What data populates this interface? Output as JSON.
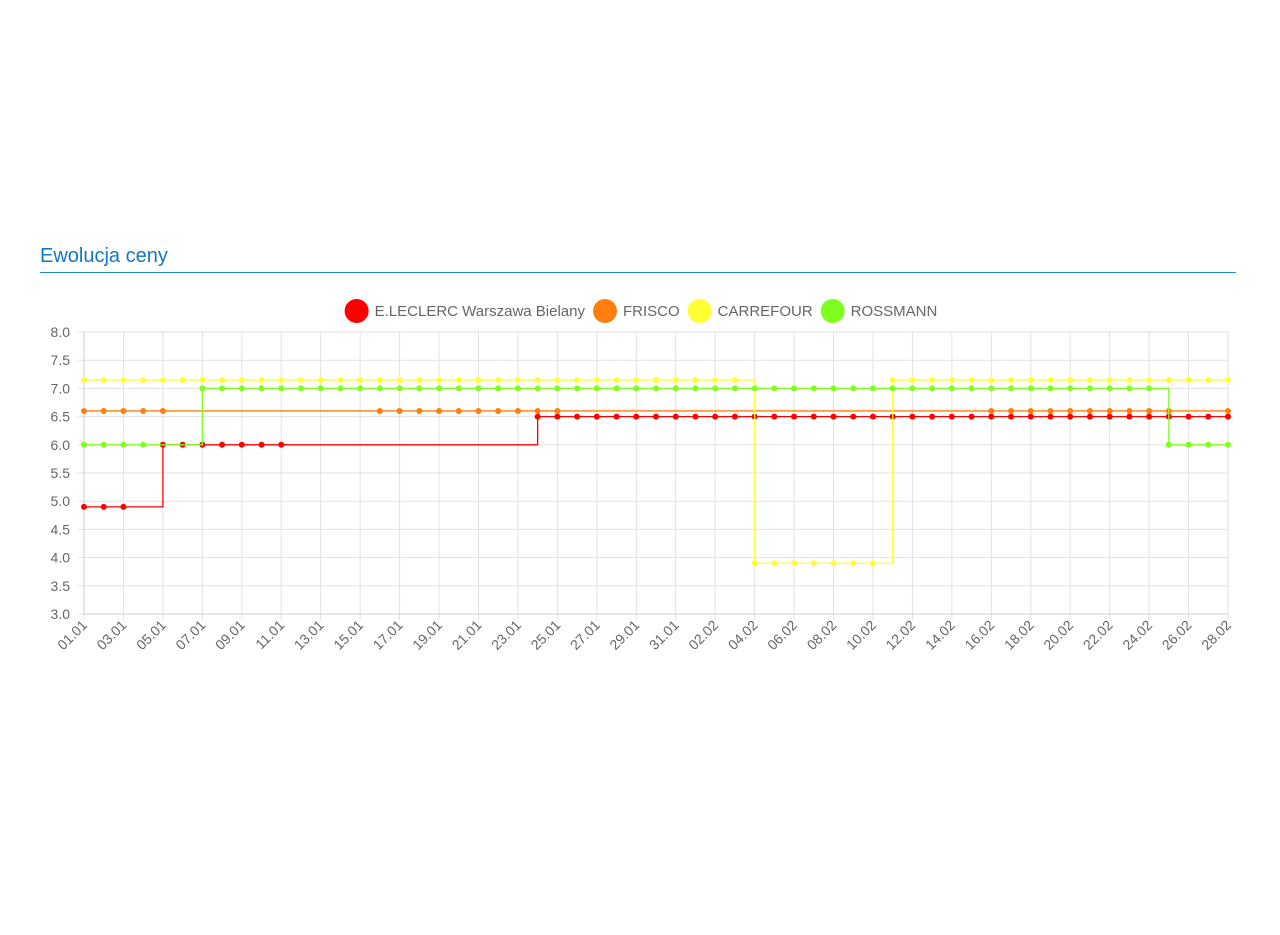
{
  "section": {
    "title": "Ewolucja ceny"
  },
  "chart_data": {
    "type": "line",
    "stepped": true,
    "title": "",
    "xlabel": "",
    "ylabel": "",
    "ylim": [
      3.0,
      8.0
    ],
    "ytick_step": 0.5,
    "yticks": [
      "8.0",
      "7.5",
      "7.0",
      "6.5",
      "6.0",
      "5.5",
      "5.0",
      "4.5",
      "4.0",
      "3.5",
      "3.0"
    ],
    "grid": true,
    "legend_position": "top-center",
    "x": [
      "01.01",
      "02.01",
      "03.01",
      "04.01",
      "05.01",
      "06.01",
      "07.01",
      "08.01",
      "09.01",
      "10.01",
      "11.01",
      "12.01",
      "13.01",
      "14.01",
      "15.01",
      "16.01",
      "17.01",
      "18.01",
      "19.01",
      "20.01",
      "21.01",
      "22.01",
      "23.01",
      "24.01",
      "25.01",
      "26.01",
      "27.01",
      "28.01",
      "29.01",
      "30.01",
      "31.01",
      "01.02",
      "02.02",
      "03.02",
      "04.02",
      "05.02",
      "06.02",
      "07.02",
      "08.02",
      "09.02",
      "10.02",
      "11.02",
      "12.02",
      "13.02",
      "14.02",
      "15.02",
      "16.02",
      "17.02",
      "18.02",
      "19.02",
      "20.02",
      "21.02",
      "22.02",
      "23.02",
      "24.02",
      "25.02",
      "26.02",
      "27.02",
      "28.02"
    ],
    "xtick_labels": [
      "01.01",
      "03.01",
      "05.01",
      "07.01",
      "09.01",
      "11.01",
      "13.01",
      "15.01",
      "17.01",
      "19.01",
      "21.01",
      "23.01",
      "25.01",
      "27.01",
      "29.01",
      "31.01",
      "02.02",
      "04.02",
      "06.02",
      "08.02",
      "10.02",
      "12.02",
      "14.02",
      "16.02",
      "18.02",
      "20.02",
      "22.02",
      "24.02",
      "26.02",
      "28.02"
    ],
    "series": [
      {
        "name": "E.LECLERC Warszawa Bielany",
        "color": "#ff0000",
        "segments": [
          {
            "from": 0,
            "to": 3,
            "value": 4.9
          },
          {
            "from": 4,
            "to": 22,
            "value": 6.0
          },
          {
            "from": 23,
            "to": 58,
            "value": 6.5
          }
        ],
        "markers": [
          0,
          1,
          2,
          4,
          5,
          6,
          7,
          8,
          9,
          10,
          23,
          24,
          25,
          26,
          27,
          28,
          29,
          30,
          31,
          32,
          33,
          34,
          35,
          36,
          37,
          38,
          39,
          40,
          41,
          42,
          43,
          44,
          45,
          46,
          47,
          48,
          49,
          50,
          51,
          52,
          53,
          54,
          55,
          56,
          57,
          58
        ]
      },
      {
        "name": "FRISCO",
        "color": "#ff7f0e",
        "segments": [
          {
            "from": 0,
            "to": 58,
            "value": 6.6
          }
        ],
        "markers": [
          0,
          1,
          2,
          3,
          4,
          15,
          16,
          17,
          18,
          19,
          20,
          21,
          22,
          23,
          24,
          46,
          47,
          48,
          49,
          50,
          51,
          52,
          53,
          54,
          55,
          58
        ]
      },
      {
        "name": "CARREFOUR",
        "color": "#ffff33",
        "segments": [
          {
            "from": 0,
            "to": 33,
            "value": 7.15
          },
          {
            "from": 34,
            "to": 40,
            "value": 3.9
          },
          {
            "from": 41,
            "to": 58,
            "value": 7.15
          }
        ],
        "markers": [
          0,
          1,
          2,
          3,
          4,
          5,
          6,
          7,
          8,
          9,
          10,
          11,
          12,
          13,
          14,
          15,
          16,
          17,
          18,
          19,
          20,
          21,
          22,
          23,
          24,
          25,
          26,
          27,
          28,
          29,
          30,
          31,
          32,
          33,
          34,
          35,
          36,
          37,
          38,
          39,
          40,
          41,
          42,
          43,
          44,
          45,
          46,
          47,
          48,
          49,
          50,
          51,
          52,
          53,
          54,
          55,
          56,
          57,
          58
        ]
      },
      {
        "name": "ROSSMANN",
        "color": "#7fff1f",
        "segments": [
          {
            "from": 0,
            "to": 5,
            "value": 6.0
          },
          {
            "from": 6,
            "to": 54,
            "value": 7.0
          },
          {
            "from": 55,
            "to": 58,
            "value": 6.0
          }
        ],
        "markers": [
          0,
          1,
          2,
          3,
          6,
          7,
          8,
          9,
          10,
          11,
          12,
          13,
          14,
          15,
          16,
          17,
          18,
          19,
          20,
          21,
          22,
          23,
          24,
          25,
          26,
          27,
          28,
          29,
          30,
          31,
          32,
          33,
          34,
          35,
          36,
          37,
          38,
          39,
          40,
          41,
          42,
          43,
          44,
          45,
          46,
          47,
          48,
          49,
          50,
          51,
          52,
          53,
          54,
          55,
          56,
          57,
          58
        ]
      }
    ]
  }
}
